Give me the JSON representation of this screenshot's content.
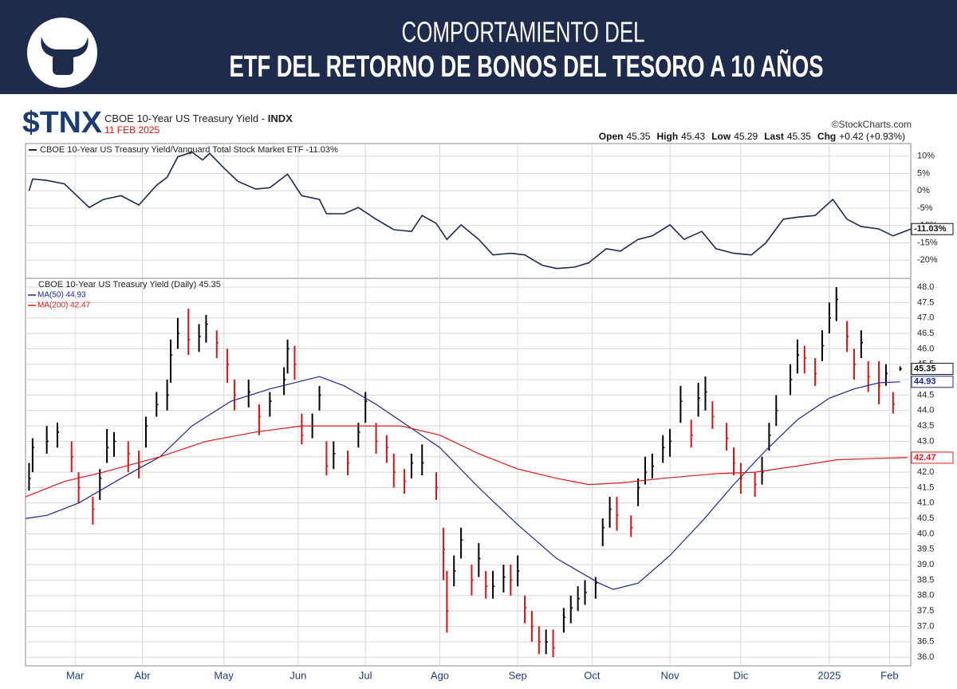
{
  "header": {
    "line1": "COMPORTAMIENTO DEL",
    "line2": "ETF DEL RETORNO DE BONOS DEL TESORO A 10 AÑOS"
  },
  "symbol": "$TNX",
  "symbol_name": "CBOE 10-Year US Treasury Yield - ",
  "exchange": "INDX",
  "date": "11 FEB 2025",
  "credit": "©StockCharts.com",
  "quote": [
    {
      "label": "Open",
      "value": 45.35
    },
    {
      "label": "High",
      "value": 45.43
    },
    {
      "label": "Low",
      "value": 45.29
    },
    {
      "label": "Last",
      "value": 45.35
    },
    {
      "label": "Chg",
      "value": "+0.42 (+0.93%)"
    }
  ],
  "chart_data": [
    {
      "type": "line",
      "name": "CBOE 10-Year US Treasury Yield/Vanguard Total Stock Market ETF -11.03%",
      "color": "#1c2a4a",
      "tag": "-11.03%",
      "x": [
        1,
        2,
        6,
        11,
        18,
        22,
        27,
        32,
        37,
        40,
        43,
        47,
        50,
        52,
        56,
        60,
        65,
        69,
        74,
        78,
        83,
        85,
        90,
        94,
        99,
        104,
        109,
        112,
        116,
        119,
        123,
        128,
        132,
        137,
        141,
        146,
        150,
        155,
        159,
        164,
        168,
        173,
        177,
        182,
        186,
        191,
        195,
        200,
        205,
        209,
        214,
        218,
        223,
        228,
        232,
        236,
        241,
        245,
        250
      ],
      "values": [
        0,
        3.4,
        3,
        2,
        -4.8,
        -2.5,
        -1.4,
        -4.1,
        1.6,
        3.9,
        9.8,
        11.2,
        8.9,
        10.8,
        6.6,
        2.7,
        0.5,
        0.9,
        4.8,
        -1.4,
        -2.5,
        -6.6,
        -6.6,
        -4.8,
        -8.2,
        -11.2,
        -11.7,
        -7.1,
        -9.4,
        -14,
        -9.8,
        -14,
        -18.5,
        -18,
        -18.5,
        -21.5,
        -22.4,
        -22,
        -20.8,
        -16.7,
        -17.4,
        -14,
        -13,
        -9.8,
        -14,
        -11.7,
        -16.7,
        -18,
        -18.5,
        -15.1,
        -8.2,
        -7.6,
        -7.1,
        -2.5,
        -8.2,
        -10.3,
        -11,
        -13,
        -11.03
      ],
      "xlim": [
        0,
        250
      ],
      "ylim": [
        -25,
        13.4
      ],
      "yticks": [
        {
          "value": 10,
          "label": "10%"
        },
        {
          "value": 5,
          "label": "5%"
        },
        {
          "value": 0,
          "label": "0%"
        },
        {
          "value": -5,
          "label": "-5%"
        },
        {
          "value": -10,
          "label": "-10%"
        },
        {
          "value": -15,
          "label": "-15%"
        },
        {
          "value": -20,
          "label": "-20%"
        }
      ]
    },
    {
      "type": "hlc",
      "name": "CBOE 10-Year US Treasury Yield (Daily) 45.35",
      "tag": "45.35",
      "up_color": "#000000",
      "down_color": "#e01010",
      "x": [
        1,
        2,
        6,
        9,
        13,
        15,
        19,
        21,
        23,
        25,
        29,
        32,
        34,
        37,
        40,
        41,
        43,
        46,
        49,
        51,
        54,
        57,
        59,
        63,
        66,
        69,
        73,
        74,
        76,
        78,
        81,
        83,
        85,
        87,
        91,
        94,
        96,
        99,
        102,
        104,
        107,
        109,
        112,
        116,
        118,
        119,
        121,
        123,
        126,
        128,
        130,
        132,
        135,
        137,
        139,
        141,
        143,
        145,
        147,
        149,
        152,
        154,
        156,
        158,
        161,
        163,
        165,
        167,
        171,
        173,
        175,
        177,
        180,
        182,
        185,
        188,
        190,
        192,
        194,
        198,
        200,
        202,
        206,
        208,
        210,
        212,
        216,
        218,
        220,
        223,
        225,
        227,
        229,
        232,
        234,
        236,
        238,
        241,
        243,
        245,
        247
      ],
      "high": [
        42.3,
        43.1,
        43.5,
        43.6,
        43.0,
        42.0,
        41.2,
        42.1,
        43.4,
        43.3,
        43.0,
        42.7,
        43.8,
        44.6,
        45.0,
        46.3,
        47.0,
        47.3,
        46.8,
        47.1,
        46.6,
        46.0,
        45.0,
        45.0,
        44.2,
        44.6,
        45.4,
        46.3,
        46.1,
        43.9,
        43.9,
        44.8,
        43.0,
        43.0,
        42.7,
        43.6,
        44.6,
        43.6,
        43.2,
        42.6,
        42.1,
        42.6,
        42.9,
        42.0,
        40.2,
        38.8,
        39.3,
        40.2,
        39.0,
        39.7,
        38.8,
        38.8,
        39.0,
        39.0,
        39.3,
        38.0,
        37.5,
        37.0,
        36.9,
        36.9,
        37.6,
        38.0,
        38.3,
        38.5,
        38.6,
        40.5,
        41.2,
        41.2,
        40.6,
        41.8,
        42.5,
        42.6,
        43.2,
        43.4,
        44.8,
        43.7,
        44.9,
        45.1,
        44.3,
        43.6,
        42.8,
        42.3,
        42.0,
        42.5,
        43.6,
        44.5,
        45.5,
        46.3,
        46.1,
        45.7,
        46.6,
        47.5,
        48.0,
        46.9,
        46.0,
        46.6,
        45.6,
        45.6,
        45.5,
        44.6,
        45.43
      ],
      "low": [
        41.4,
        42.0,
        42.6,
        42.8,
        42.0,
        41.0,
        40.3,
        41.1,
        42.3,
        42.5,
        42.0,
        41.8,
        42.8,
        43.8,
        44.0,
        44.9,
        46.0,
        45.8,
        45.9,
        46.2,
        45.7,
        44.9,
        44.0,
        44.1,
        43.2,
        43.8,
        44.5,
        45.2,
        45.0,
        42.9,
        43.1,
        44.0,
        41.9,
        42.1,
        41.9,
        42.8,
        43.6,
        42.6,
        42.3,
        41.5,
        41.3,
        41.8,
        41.9,
        41.1,
        38.5,
        36.8,
        38.3,
        39.2,
        38.0,
        38.6,
        37.9,
        37.9,
        38.1,
        38.0,
        38.3,
        37.1,
        36.5,
        36.1,
        36.1,
        36.0,
        36.8,
        37.1,
        37.5,
        37.7,
        37.9,
        39.6,
        40.2,
        40.1,
        39.9,
        40.9,
        41.6,
        41.8,
        42.3,
        42.5,
        43.6,
        42.8,
        43.8,
        44.0,
        43.4,
        42.7,
        41.9,
        41.3,
        41.2,
        41.6,
        42.7,
        43.5,
        44.5,
        45.2,
        45.2,
        44.8,
        45.6,
        46.5,
        46.9,
        45.9,
        45.0,
        45.7,
        44.6,
        44.2,
        44.8,
        43.9,
        45.29
      ],
      "close": [
        41.8,
        42.8,
        43.0,
        43.3,
        42.5,
        41.5,
        40.8,
        41.8,
        42.8,
        43.0,
        42.6,
        42.2,
        43.5,
        44.2,
        44.5,
        45.8,
        46.5,
        46.3,
        46.4,
        46.8,
        46.2,
        45.5,
        44.5,
        44.6,
        43.8,
        44.3,
        45.0,
        46.0,
        45.5,
        43.2,
        43.5,
        44.5,
        42.2,
        42.6,
        42.3,
        43.3,
        44.3,
        43.0,
        42.8,
        42.0,
        41.7,
        42.3,
        42.3,
        41.5,
        39.5,
        37.5,
        38.8,
        39.8,
        38.5,
        39.2,
        38.3,
        38.3,
        38.6,
        38.5,
        38.8,
        37.6,
        37.0,
        36.5,
        36.5,
        36.3,
        37.3,
        37.6,
        37.9,
        38.1,
        38.4,
        40.2,
        40.8,
        40.6,
        40.2,
        41.5,
        42.0,
        42.2,
        42.8,
        43.0,
        44.3,
        43.2,
        44.4,
        44.6,
        43.8,
        43.1,
        42.3,
        41.8,
        41.6,
        42.0,
        43.2,
        44.0,
        45.0,
        45.8,
        45.7,
        45.2,
        46.1,
        47.0,
        47.6,
        46.4,
        45.5,
        46.2,
        45.1,
        44.8,
        45.2,
        44.2,
        45.35
      ],
      "lines": [
        {
          "name": "MA(50) 44.93",
          "color": "#1a2590",
          "tag": "44.93",
          "x": [
            0,
            6,
            15,
            27,
            38,
            47,
            58,
            69,
            83,
            90,
            99,
            108,
            117,
            128,
            139,
            150,
            162,
            166,
            173,
            182,
            191,
            200,
            209,
            218,
            227,
            234,
            241,
            247
          ],
          "values": [
            40.5,
            40.6,
            41.0,
            41.8,
            42.5,
            43.5,
            44.3,
            44.7,
            45.1,
            44.8,
            44.2,
            43.5,
            42.8,
            41.5,
            40.3,
            39.2,
            38.4,
            38.2,
            38.4,
            39.3,
            40.4,
            41.6,
            42.7,
            43.7,
            44.4,
            44.7,
            44.9,
            44.93
          ]
        },
        {
          "name": "MA(200) 42.47",
          "color": "#e01818",
          "tag": "42.47",
          "x": [
            0,
            11,
            22,
            38,
            51,
            65,
            78,
            92,
            106,
            117,
            128,
            139,
            150,
            159,
            168,
            180,
            195,
            206,
            218,
            229,
            241,
            249
          ],
          "values": [
            41.2,
            41.7,
            42.0,
            42.5,
            43.0,
            43.3,
            43.5,
            43.5,
            43.5,
            43.2,
            42.6,
            42.1,
            41.8,
            41.6,
            41.65,
            41.8,
            41.95,
            42.0,
            42.2,
            42.4,
            42.45,
            42.47
          ]
        }
      ],
      "xlim": [
        0,
        250
      ],
      "ylim": [
        35.72,
        48.26
      ],
      "xticks": [
        {
          "value": 14,
          "label": "Mar"
        },
        {
          "value": 33,
          "label": "Abr"
        },
        {
          "value": 56,
          "label": "May"
        },
        {
          "value": 77,
          "label": "Jun"
        },
        {
          "value": 96,
          "label": "Jul"
        },
        {
          "value": 117,
          "label": "Ago"
        },
        {
          "value": 139,
          "label": "Sep"
        },
        {
          "value": 160,
          "label": "Oct"
        },
        {
          "value": 182,
          "label": "Nov"
        },
        {
          "value": 202,
          "label": "Dic"
        },
        {
          "value": 227,
          "label": "2025"
        },
        {
          "value": 244,
          "label": "Feb"
        }
      ],
      "yticks": [
        {
          "value": 36,
          "label": "36.0"
        },
        {
          "value": 36.5,
          "label": "36.5"
        },
        {
          "value": 37,
          "label": "37.0"
        },
        {
          "value": 37.5,
          "label": "37.5"
        },
        {
          "value": 38,
          "label": "38.0"
        },
        {
          "value": 38.5,
          "label": "38.5"
        },
        {
          "value": 39,
          "label": "39.0"
        },
        {
          "value": 39.5,
          "label": "39.5"
        },
        {
          "value": 40,
          "label": "40.0"
        },
        {
          "value": 40.5,
          "label": "40.5"
        },
        {
          "value": 41,
          "label": "41.0"
        },
        {
          "value": 41.5,
          "label": "41.5"
        },
        {
          "value": 42,
          "label": "42.0"
        },
        {
          "value": 42.5,
          "label": "42.5"
        },
        {
          "value": 43,
          "label": "43.0"
        },
        {
          "value": 43.5,
          "label": "43.5"
        },
        {
          "value": 44,
          "label": "44.0"
        },
        {
          "value": 44.5,
          "label": "44.5"
        },
        {
          "value": 45,
          "label": "45.0"
        },
        {
          "value": 45.5,
          "label": "45.5"
        },
        {
          "value": 46,
          "label": "46.0"
        },
        {
          "value": 46.5,
          "label": "46.5"
        },
        {
          "value": 47,
          "label": "47.0"
        },
        {
          "value": 47.5,
          "label": "47.5"
        },
        {
          "value": 48,
          "label": "48.0"
        }
      ]
    }
  ]
}
